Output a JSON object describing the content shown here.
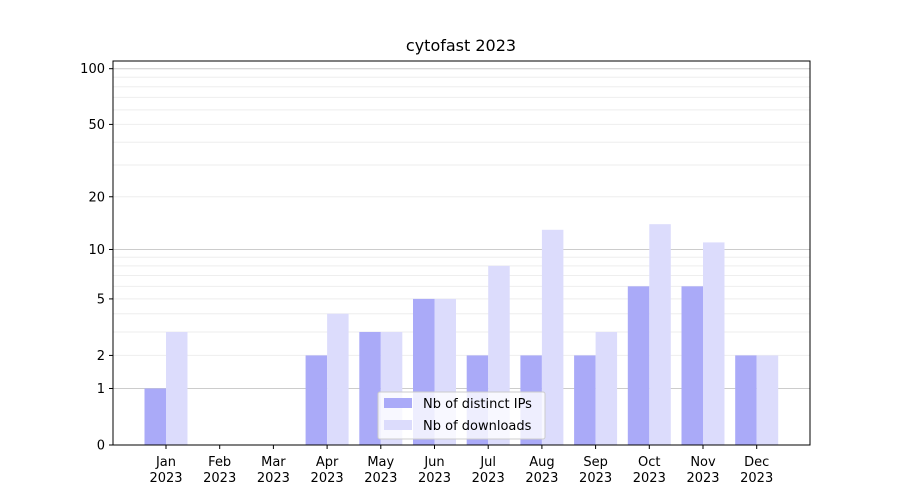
{
  "chart_data": {
    "type": "bar",
    "title": "cytofast 2023",
    "xlabel": "",
    "ylabel": "",
    "yscale": "log(1+y)",
    "ylim": [
      0,
      110
    ],
    "yticks": [
      0,
      1,
      2,
      5,
      10,
      20,
      50,
      100
    ],
    "grid": true,
    "legend_position": "bottom-center",
    "categories": [
      {
        "month": "Jan",
        "year": "2023"
      },
      {
        "month": "Feb",
        "year": "2023"
      },
      {
        "month": "Mar",
        "year": "2023"
      },
      {
        "month": "Apr",
        "year": "2023"
      },
      {
        "month": "May",
        "year": "2023"
      },
      {
        "month": "Jun",
        "year": "2023"
      },
      {
        "month": "Jul",
        "year": "2023"
      },
      {
        "month": "Aug",
        "year": "2023"
      },
      {
        "month": "Sep",
        "year": "2023"
      },
      {
        "month": "Oct",
        "year": "2023"
      },
      {
        "month": "Nov",
        "year": "2023"
      },
      {
        "month": "Dec",
        "year": "2023"
      }
    ],
    "series": [
      {
        "name": "Nb of distinct IPs",
        "color": "#aaaaf8",
        "values": [
          1,
          0,
          0,
          2,
          3,
          5,
          2,
          2,
          2,
          6,
          6,
          2
        ]
      },
      {
        "name": "Nb of downloads",
        "color": "#dcdcfc",
        "values": [
          3,
          0,
          0,
          4,
          3,
          5,
          8,
          13,
          3,
          14,
          11,
          2
        ]
      }
    ]
  }
}
